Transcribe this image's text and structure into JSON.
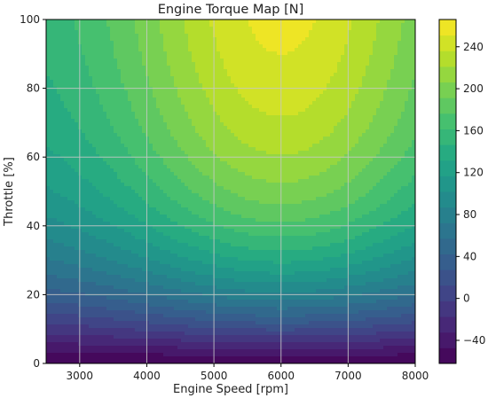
{
  "chart_data": {
    "type": "heatmap",
    "subtype": "filled-contour",
    "title": "Engine Torque Map [N]",
    "xlabel": "Engine Speed [rpm]",
    "ylabel": "Throttle [%]",
    "xlim": [
      2500,
      8000
    ],
    "ylim": [
      0,
      100
    ],
    "xticks": [
      3000,
      4000,
      5000,
      6000,
      7000,
      8000
    ],
    "yticks": [
      0,
      20,
      40,
      60,
      80,
      100
    ],
    "grid": true,
    "colormap": "viridis",
    "colorbar": {
      "range": [
        -62,
        266
      ],
      "ticks": [
        -40,
        0,
        40,
        80,
        120,
        160,
        200,
        240
      ]
    },
    "peak": {
      "x": 6000,
      "y": 100,
      "value": 266
    },
    "samples": [
      {
        "x": 6000,
        "y": 100,
        "value": 264
      },
      {
        "x": 6000,
        "y": 80,
        "value": 240
      },
      {
        "x": 6000,
        "y": 60,
        "value": 185
      },
      {
        "x": 6000,
        "y": 40,
        "value": 115
      },
      {
        "x": 6000,
        "y": 20,
        "value": 35
      },
      {
        "x": 6000,
        "y": 0,
        "value": -60
      },
      {
        "x": 3000,
        "y": 100,
        "value": 170
      },
      {
        "x": 3000,
        "y": 60,
        "value": 130
      },
      {
        "x": 8000,
        "y": 100,
        "value": 160
      },
      {
        "x": 8000,
        "y": 60,
        "value": 130
      },
      {
        "x": 4000,
        "y": 20,
        "value": 40
      }
    ]
  }
}
